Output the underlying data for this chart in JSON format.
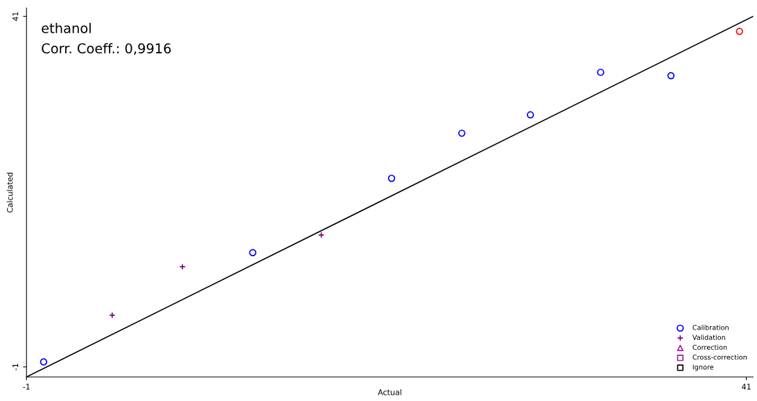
{
  "chart_data": {
    "type": "scatter",
    "xlabel": "Actual",
    "ylabel": "Calculated",
    "annotations": [
      "ethanol",
      "Corr. Coeff.: 0,9916"
    ],
    "xlim": [
      -1,
      41.4
    ],
    "ylim": [
      -2.2,
      42
    ],
    "xticks": [
      -1,
      41
    ],
    "yticks": [
      -1,
      41
    ],
    "legend": "bottom right",
    "grid": false,
    "series": [
      {
        "name": "Calibration",
        "color": "#0000ff",
        "marker": "circle",
        "x": [
          0.0,
          12.2,
          20.3,
          24.4,
          28.4,
          32.5,
          36.6
        ],
        "values": [
          -0.4,
          12.7,
          21.6,
          27.0,
          29.2,
          34.3,
          33.9
        ]
      },
      {
        "name": "Validation",
        "color": "#800080",
        "marker": "cross",
        "x": [
          4.0,
          8.1,
          16.2
        ],
        "values": [
          5.2,
          11.0,
          14.8
        ]
      },
      {
        "name": "Correction",
        "color": "#a020a0",
        "marker": "triangle"
      },
      {
        "name": "Cross-correction",
        "color": "#a020a0",
        "marker": "square"
      },
      {
        "name": "Ignore",
        "color": "#000000",
        "marker": "square"
      },
      {
        "color": "#ff0000",
        "marker": "circle",
        "x": [
          40.6
        ],
        "values": [
          39.2
        ]
      },
      {
        "type": "line",
        "color": "#000000",
        "marker": "none",
        "x": [
          -1,
          41.4
        ],
        "values": [
          -2.2,
          41
        ]
      }
    ]
  }
}
